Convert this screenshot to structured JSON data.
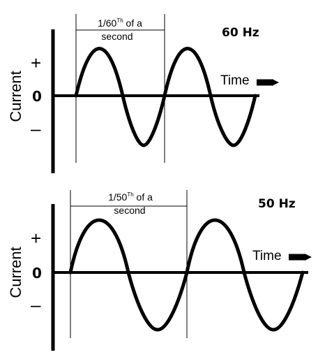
{
  "panels": [
    {
      "frequency_label": "60 Hz",
      "y_axis_label": "Current",
      "plus_label": "+",
      "zero_label": "0",
      "minus_label": "–",
      "time_label": "Time",
      "period_label_prefix": "1/60",
      "period_label_sup": "Th",
      "period_label_suffix": " of a",
      "period_label_line2": "second"
    },
    {
      "frequency_label": "50 Hz",
      "y_axis_label": "Current",
      "plus_label": "+",
      "zero_label": "0",
      "minus_label": "–",
      "time_label": "Time",
      "period_label_prefix": "1/50",
      "period_label_sup": "Th",
      "period_label_suffix": " of a",
      "period_label_line2": "second"
    }
  ]
}
